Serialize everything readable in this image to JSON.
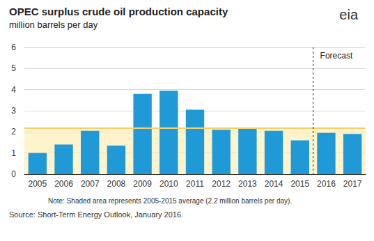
{
  "chart_data": {
    "type": "bar",
    "title": "OPEC surplus crude oil production capacity",
    "subtitle": "million barrels per day",
    "logo": "eia",
    "categories": [
      "2005",
      "2006",
      "2007",
      "2008",
      "2009",
      "2010",
      "2011",
      "2012",
      "2013",
      "2014",
      "2015",
      "2016",
      "2017"
    ],
    "values": [
      1.0,
      1.4,
      2.05,
      1.35,
      3.8,
      3.95,
      3.05,
      2.1,
      2.15,
      2.05,
      1.6,
      1.95,
      1.9
    ],
    "color": "#1f9ad6",
    "ylim": [
      0,
      6
    ],
    "yticks": [
      0,
      1,
      2,
      3,
      4,
      5,
      6
    ],
    "grid": true,
    "average": 2.2,
    "forecast_start": "2016",
    "forecast_label": "Forecast",
    "note": "Note: Shaded area represents 2005-2015 average (2.2 million barrels per day).",
    "source": "Source: Short-Term Energy Outlook, January 2016."
  }
}
